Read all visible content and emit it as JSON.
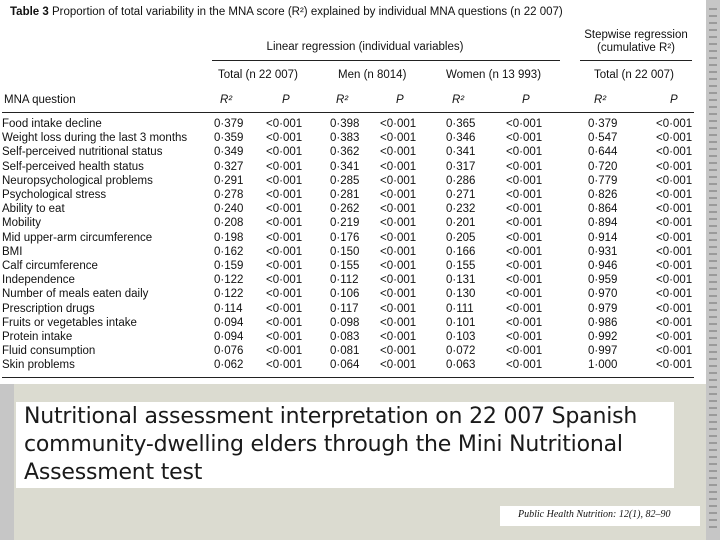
{
  "caption": {
    "label": "Table 3",
    "text": "Proportion of total variability in the MNA score (R²) explained by individual MNA questions (n 22 007)"
  },
  "groups": {
    "linear": "Linear regression (individual variables)",
    "stepwise_line1": "Stepwise regression",
    "stepwise_line2": "(cumulative R²)"
  },
  "columns": {
    "question": "MNA question",
    "total": "Total (n 22 007)",
    "men": "Men (n 8014)",
    "women": "Women (n 13 993)",
    "stepwise_total": "Total (n 22 007)",
    "r2": "R²",
    "p": "P"
  },
  "rows": [
    {
      "q": "Food intake decline",
      "t_r2": "0·379",
      "t_p": "<0·001",
      "m_r2": "0·398",
      "m_p": "<0·001",
      "w_r2": "0·365",
      "w_p": "<0·001",
      "s_r2": "0·379",
      "s_p": "<0·001"
    },
    {
      "q": "Weight loss during the last 3 months",
      "t_r2": "0·359",
      "t_p": "<0·001",
      "m_r2": "0·383",
      "m_p": "<0·001",
      "w_r2": "0·346",
      "w_p": "<0·001",
      "s_r2": "0·547",
      "s_p": "<0·001"
    },
    {
      "q": "Self-perceived nutritional status",
      "t_r2": "0·349",
      "t_p": "<0·001",
      "m_r2": "0·362",
      "m_p": "<0·001",
      "w_r2": "0·341",
      "w_p": "<0·001",
      "s_r2": "0·644",
      "s_p": "<0·001"
    },
    {
      "q": "Self-perceived health status",
      "t_r2": "0·327",
      "t_p": "<0·001",
      "m_r2": "0·341",
      "m_p": "<0·001",
      "w_r2": "0·317",
      "w_p": "<0·001",
      "s_r2": "0·720",
      "s_p": "<0·001"
    },
    {
      "q": "Neuropsychological problems",
      "t_r2": "0·291",
      "t_p": "<0·001",
      "m_r2": "0·285",
      "m_p": "<0·001",
      "w_r2": "0·286",
      "w_p": "<0·001",
      "s_r2": "0·779",
      "s_p": "<0·001"
    },
    {
      "q": "Psychological stress",
      "t_r2": "0·278",
      "t_p": "<0·001",
      "m_r2": "0·281",
      "m_p": "<0·001",
      "w_r2": "0·271",
      "w_p": "<0·001",
      "s_r2": "0·826",
      "s_p": "<0·001"
    },
    {
      "q": "Ability to eat",
      "t_r2": "0·240",
      "t_p": "<0·001",
      "m_r2": "0·262",
      "m_p": "<0·001",
      "w_r2": "0·232",
      "w_p": "<0·001",
      "s_r2": "0·864",
      "s_p": "<0·001"
    },
    {
      "q": "Mobility",
      "t_r2": "0·208",
      "t_p": "<0·001",
      "m_r2": "0·219",
      "m_p": "<0·001",
      "w_r2": "0·201",
      "w_p": "<0·001",
      "s_r2": "0·894",
      "s_p": "<0·001"
    },
    {
      "q": "Mid upper-arm circumference",
      "t_r2": "0·198",
      "t_p": "<0·001",
      "m_r2": "0·176",
      "m_p": "<0·001",
      "w_r2": "0·205",
      "w_p": "<0·001",
      "s_r2": "0·914",
      "s_p": "<0·001"
    },
    {
      "q": "BMI",
      "t_r2": "0·162",
      "t_p": "<0·001",
      "m_r2": "0·150",
      "m_p": "<0·001",
      "w_r2": "0·166",
      "w_p": "<0·001",
      "s_r2": "0·931",
      "s_p": "<0·001"
    },
    {
      "q": "Calf circumference",
      "t_r2": "0·159",
      "t_p": "<0·001",
      "m_r2": "0·155",
      "m_p": "<0·001",
      "w_r2": "0·155",
      "w_p": "<0·001",
      "s_r2": "0·946",
      "s_p": "<0·001"
    },
    {
      "q": "Independence",
      "t_r2": "0·122",
      "t_p": "<0·001",
      "m_r2": "0·112",
      "m_p": "<0·001",
      "w_r2": "0·131",
      "w_p": "<0·001",
      "s_r2": "0·959",
      "s_p": "<0·001"
    },
    {
      "q": "Number of meals eaten daily",
      "t_r2": "0·122",
      "t_p": "<0·001",
      "m_r2": "0·106",
      "m_p": "<0·001",
      "w_r2": "0·130",
      "w_p": "<0·001",
      "s_r2": "0·970",
      "s_p": "<0·001"
    },
    {
      "q": "Prescription drugs",
      "t_r2": "0·114",
      "t_p": "<0·001",
      "m_r2": "0·117",
      "m_p": "<0·001",
      "w_r2": "0·111",
      "w_p": "<0·001",
      "s_r2": "0·979",
      "s_p": "<0·001"
    },
    {
      "q": "Fruits or vegetables intake",
      "t_r2": "0·094",
      "t_p": "<0·001",
      "m_r2": "0·098",
      "m_p": "<0·001",
      "w_r2": "0·101",
      "w_p": "<0·001",
      "s_r2": "0·986",
      "s_p": "<0·001"
    },
    {
      "q": "Protein intake",
      "t_r2": "0·094",
      "t_p": "<0·001",
      "m_r2": "0·083",
      "m_p": "<0·001",
      "w_r2": "0·103",
      "w_p": "<0·001",
      "s_r2": "0·992",
      "s_p": "<0·001"
    },
    {
      "q": "Fluid consumption",
      "t_r2": "0·076",
      "t_p": "<0·001",
      "m_r2": "0·081",
      "m_p": "<0·001",
      "w_r2": "0·072",
      "w_p": "<0·001",
      "s_r2": "0·997",
      "s_p": "<0·001"
    },
    {
      "q": "Skin problems",
      "t_r2": "0·062",
      "t_p": "<0·001",
      "m_r2": "0·064",
      "m_p": "<0·001",
      "w_r2": "0·063",
      "w_p": "<0·001",
      "s_r2": "1·000",
      "s_p": "<0·001"
    }
  ],
  "slide_title": "Nutritional assessment interpretation on 22 007 Spanish community-dwelling elders through the Mini Nutritional Assessment test",
  "source": "Public Health Nutrition: 12(1), 82–90",
  "colors": {
    "panel": "#dbdbd0",
    "side_bars": "#c6c6c6"
  }
}
